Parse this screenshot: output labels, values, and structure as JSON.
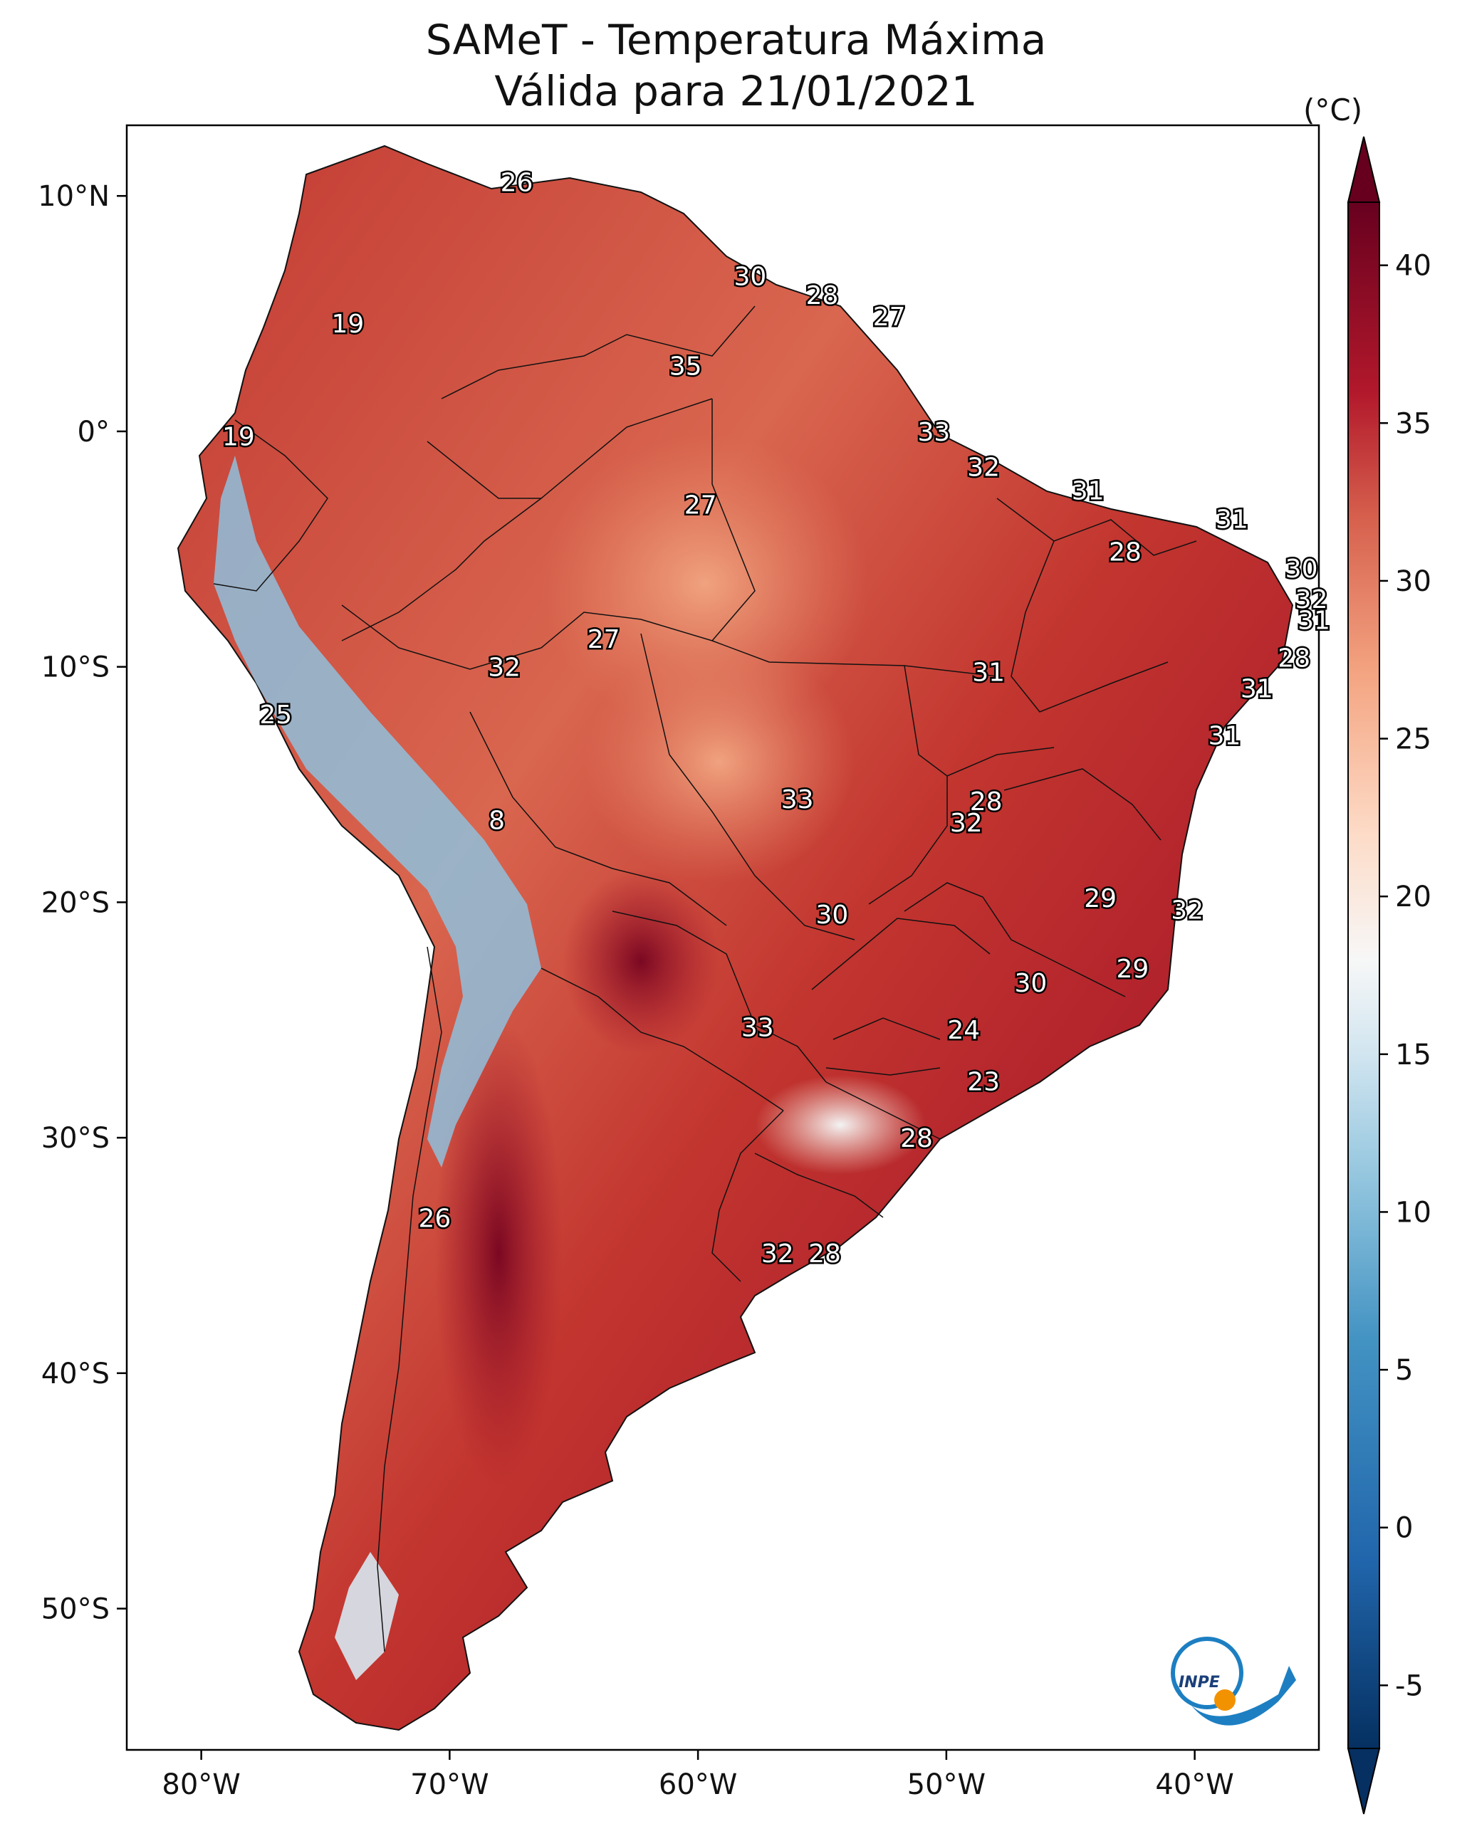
{
  "title": {
    "line1": "SAMeT - Temperatura Máxima",
    "line2": "Válida para 21/01/2021"
  },
  "map": {
    "extent": {
      "lon_min": -83,
      "lon_max": -35,
      "lat_min": -56,
      "lat_max": 13
    },
    "lat_ticks": [
      {
        "lat": 10,
        "label": "10°N"
      },
      {
        "lat": 0,
        "label": "0°"
      },
      {
        "lat": -10,
        "label": "10°S"
      },
      {
        "lat": -20,
        "label": "20°S"
      },
      {
        "lat": -30,
        "label": "30°S"
      },
      {
        "lat": -40,
        "label": "40°S"
      },
      {
        "lat": -50,
        "label": "50°S"
      }
    ],
    "lon_ticks": [
      {
        "lon": -80,
        "label": "80°W"
      },
      {
        "lon": -70,
        "label": "70°W"
      },
      {
        "lon": -60,
        "label": "60°W"
      },
      {
        "lon": -50,
        "label": "50°W"
      },
      {
        "lon": -40,
        "label": "40°W"
      }
    ],
    "city_values": [
      {
        "lon": -67.3,
        "lat": 10.6,
        "value": "26"
      },
      {
        "lon": -57.9,
        "lat": 6.6,
        "value": "30"
      },
      {
        "lon": -55.0,
        "lat": 5.8,
        "value": "28"
      },
      {
        "lon": -52.3,
        "lat": 4.9,
        "value": "27"
      },
      {
        "lon": -74.1,
        "lat": 4.6,
        "value": "19"
      },
      {
        "lon": -60.5,
        "lat": 2.8,
        "value": "35"
      },
      {
        "lon": -78.5,
        "lat": -0.2,
        "value": "19"
      },
      {
        "lon": -50.5,
        "lat": 0.0,
        "value": "33"
      },
      {
        "lon": -48.5,
        "lat": -1.5,
        "value": "32"
      },
      {
        "lon": -44.3,
        "lat": -2.5,
        "value": "31"
      },
      {
        "lon": -59.9,
        "lat": -3.1,
        "value": "27"
      },
      {
        "lon": -38.5,
        "lat": -3.7,
        "value": "31"
      },
      {
        "lon": -42.8,
        "lat": -5.1,
        "value": "28"
      },
      {
        "lon": -35.7,
        "lat": -5.8,
        "value": "30"
      },
      {
        "lon": -35.3,
        "lat": -7.1,
        "value": "32"
      },
      {
        "lon": -35.2,
        "lat": -8.0,
        "value": "31"
      },
      {
        "lon": -63.8,
        "lat": -8.8,
        "value": "27"
      },
      {
        "lon": -67.8,
        "lat": -10.0,
        "value": "32"
      },
      {
        "lon": -36.0,
        "lat": -9.6,
        "value": "28"
      },
      {
        "lon": -48.3,
        "lat": -10.2,
        "value": "31"
      },
      {
        "lon": -37.5,
        "lat": -10.9,
        "value": "31"
      },
      {
        "lon": -77.0,
        "lat": -12.0,
        "value": "25"
      },
      {
        "lon": -38.8,
        "lat": -12.9,
        "value": "31"
      },
      {
        "lon": -56.0,
        "lat": -15.6,
        "value": "33"
      },
      {
        "lon": -48.4,
        "lat": -15.7,
        "value": "28"
      },
      {
        "lon": -49.2,
        "lat": -16.6,
        "value": "32"
      },
      {
        "lon": -68.1,
        "lat": -16.5,
        "value": "8"
      },
      {
        "lon": -43.8,
        "lat": -19.8,
        "value": "29"
      },
      {
        "lon": -54.6,
        "lat": -20.5,
        "value": "30"
      },
      {
        "lon": -40.3,
        "lat": -20.3,
        "value": "32"
      },
      {
        "lon": -42.5,
        "lat": -22.8,
        "value": "29"
      },
      {
        "lon": -46.6,
        "lat": -23.4,
        "value": "30"
      },
      {
        "lon": -57.6,
        "lat": -25.3,
        "value": "33"
      },
      {
        "lon": -49.3,
        "lat": -25.4,
        "value": "24"
      },
      {
        "lon": -48.5,
        "lat": -27.6,
        "value": "23"
      },
      {
        "lon": -51.2,
        "lat": -30.0,
        "value": "28"
      },
      {
        "lon": -70.6,
        "lat": -33.4,
        "value": "26"
      },
      {
        "lon": -56.8,
        "lat": -34.9,
        "value": "32"
      },
      {
        "lon": -54.9,
        "lat": -34.9,
        "value": "28"
      }
    ]
  },
  "colorbar": {
    "unit": "(°C)",
    "min": -7,
    "max": 42,
    "ticks": [
      {
        "value": 40,
        "label": "40"
      },
      {
        "value": 35,
        "label": "35"
      },
      {
        "value": 30,
        "label": "30"
      },
      {
        "value": 25,
        "label": "25"
      },
      {
        "value": 20,
        "label": "20"
      },
      {
        "value": 15,
        "label": "15"
      },
      {
        "value": 10,
        "label": "10"
      },
      {
        "value": 5,
        "label": "5"
      },
      {
        "value": 0,
        "label": "0"
      },
      {
        "value": -5,
        "label": "-5"
      }
    ],
    "stops": [
      {
        "value": -7,
        "color": "#053061"
      },
      {
        "value": -1,
        "color": "#2166ac"
      },
      {
        "value": 6,
        "color": "#4393c3"
      },
      {
        "value": 11,
        "color": "#92c5de"
      },
      {
        "value": 15,
        "color": "#d1e5f0"
      },
      {
        "value": 18,
        "color": "#f7f7f7"
      },
      {
        "value": 22,
        "color": "#fddbc7"
      },
      {
        "value": 27,
        "color": "#f4a582"
      },
      {
        "value": 32,
        "color": "#d6604d"
      },
      {
        "value": 36,
        "color": "#b2182b"
      },
      {
        "value": 42,
        "color": "#67001f"
      }
    ]
  },
  "logo": {
    "text": "INPE"
  }
}
